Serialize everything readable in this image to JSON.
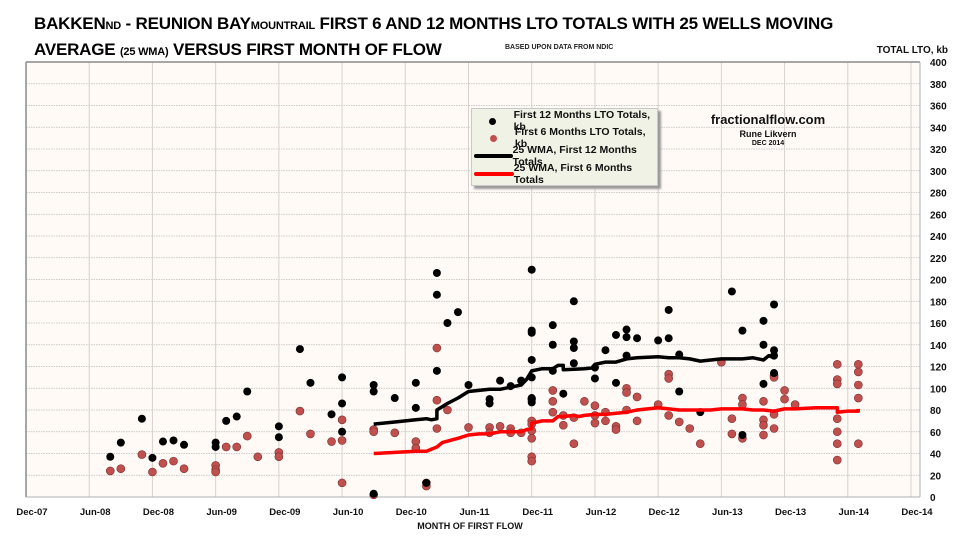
{
  "title": {
    "part1": "BAKKEN",
    "part1_sub": "ND",
    "part2": " - REUNION BAY",
    "part2_sub": "MOUNTRAIL",
    "part3": " FIRST 6 AND 12 MONTHS LTO TOTALS WITH 25 WELLS MOVING",
    "line2_a": "AVERAGE ",
    "line2_sub": "(25 WMA)",
    "line2_b": " VERSUS FIRST MONTH OF FLOW"
  },
  "subtitle": "BASED UPON DATA FROM NDIC",
  "credit": {
    "site": "fractionalflow.com",
    "author": "Rune Likvern",
    "date": "DEC 2014"
  },
  "colors": {
    "first12": "#000000",
    "first6": "#c0504d",
    "wma12": "#000000",
    "wma6": "#ff0000",
    "plot_bg": "#fffaf5",
    "grid": "#c8c8c8"
  },
  "chart_data": {
    "type": "scatter",
    "title": "BAKKEN ND - REUNION BAY MOUNTRAIL FIRST 6 AND 12 MONTHS LTO TOTALS WITH 25 WELLS MOVING AVERAGE (25 WMA) VERSUS FIRST MONTH OF FLOW",
    "xlabel": "MONTH OF FIRST FLOW",
    "ylabel": "TOTAL LTO, kb",
    "x_unit": "months since Dec-07",
    "xlim": [
      0,
      85
    ],
    "ylim": [
      0,
      400
    ],
    "x_ticks": [
      {
        "m": 0,
        "label": "Dec-07"
      },
      {
        "m": 6,
        "label": "Jun-08"
      },
      {
        "m": 12,
        "label": "Dec-08"
      },
      {
        "m": 18,
        "label": "Jun-09"
      },
      {
        "m": 24,
        "label": "Dec-09"
      },
      {
        "m": 30,
        "label": "Jun-10"
      },
      {
        "m": 36,
        "label": "Dec-10"
      },
      {
        "m": 42,
        "label": "Jun-11"
      },
      {
        "m": 48,
        "label": "Dec-11"
      },
      {
        "m": 54,
        "label": "Jun-12"
      },
      {
        "m": 60,
        "label": "Dec-12"
      },
      {
        "m": 66,
        "label": "Jun-13"
      },
      {
        "m": 72,
        "label": "Dec-13"
      },
      {
        "m": 78,
        "label": "Jun-14"
      },
      {
        "m": 84,
        "label": "Dec-14"
      }
    ],
    "y_ticks": [
      0,
      20,
      40,
      60,
      80,
      100,
      120,
      140,
      160,
      180,
      200,
      220,
      240,
      260,
      280,
      300,
      320,
      340,
      360,
      380,
      400
    ],
    "grid": true,
    "legend_position": "top-center",
    "legend": [
      {
        "label": "First 12 Months LTO Totals, kb",
        "kind": "dot",
        "series": "first12"
      },
      {
        "label": "First 6 Months LTO Totals, kb",
        "kind": "dot",
        "series": "first6"
      },
      {
        "label": "25 WMA, First 12 Months Totals",
        "kind": "line",
        "series": "wma12"
      },
      {
        "label": "25 WMA, First 6 Months Totals",
        "kind": "line",
        "series": "wma6"
      }
    ],
    "series": [
      {
        "name": "First 12 Months LTO Totals, kb",
        "key": "first12",
        "points": [
          [
            8,
            37
          ],
          [
            9,
            50
          ],
          [
            11,
            72
          ],
          [
            12,
            36
          ],
          [
            13,
            51
          ],
          [
            14,
            52
          ],
          [
            15,
            48
          ],
          [
            18,
            50
          ],
          [
            18,
            46
          ],
          [
            19,
            70
          ],
          [
            20,
            74
          ],
          [
            21,
            97
          ],
          [
            24,
            65
          ],
          [
            24,
            55
          ],
          [
            26,
            136
          ],
          [
            27,
            105
          ],
          [
            29,
            76
          ],
          [
            30,
            110
          ],
          [
            30,
            86
          ],
          [
            30,
            60
          ],
          [
            33,
            103
          ],
          [
            33,
            97
          ],
          [
            33,
            3
          ],
          [
            35,
            91
          ],
          [
            37,
            105
          ],
          [
            37,
            82
          ],
          [
            38,
            13
          ],
          [
            39,
            206
          ],
          [
            39,
            186
          ],
          [
            39,
            116
          ],
          [
            40,
            160
          ],
          [
            41,
            170
          ],
          [
            42,
            103
          ],
          [
            44,
            90
          ],
          [
            44,
            86
          ],
          [
            45,
            107
          ],
          [
            46,
            102
          ],
          [
            47,
            107
          ],
          [
            48,
            110
          ],
          [
            48,
            209
          ],
          [
            48,
            153
          ],
          [
            48,
            151
          ],
          [
            48,
            126
          ],
          [
            48,
            91
          ],
          [
            48,
            87
          ],
          [
            50,
            158
          ],
          [
            50,
            140
          ],
          [
            50,
            116
          ],
          [
            51,
            95
          ],
          [
            52,
            143
          ],
          [
            52,
            137
          ],
          [
            52,
            180
          ],
          [
            52,
            123
          ],
          [
            54,
            119
          ],
          [
            54,
            109
          ],
          [
            55,
            135
          ],
          [
            56,
            105
          ],
          [
            56,
            149
          ],
          [
            57,
            154
          ],
          [
            57,
            147
          ],
          [
            57,
            130
          ],
          [
            58,
            146
          ],
          [
            60,
            144
          ],
          [
            61,
            172
          ],
          [
            61,
            146
          ],
          [
            62,
            131
          ],
          [
            62,
            97
          ],
          [
            64,
            78
          ],
          [
            67,
            189
          ],
          [
            68,
            153
          ],
          [
            68,
            57
          ],
          [
            70,
            162
          ],
          [
            70,
            140
          ],
          [
            70,
            104
          ],
          [
            71,
            177
          ],
          [
            71,
            135
          ],
          [
            71,
            130
          ],
          [
            71,
            114
          ]
        ]
      },
      {
        "name": "First 6 Months LTO Totals, kb",
        "key": "first6",
        "points": [
          [
            8,
            24
          ],
          [
            9,
            26
          ],
          [
            11,
            39
          ],
          [
            12,
            23
          ],
          [
            13,
            31
          ],
          [
            14,
            33
          ],
          [
            15,
            26
          ],
          [
            18,
            29
          ],
          [
            18,
            25
          ],
          [
            18,
            23
          ],
          [
            19,
            46
          ],
          [
            20,
            46
          ],
          [
            21,
            56
          ],
          [
            22,
            37
          ],
          [
            24,
            41
          ],
          [
            24,
            37
          ],
          [
            26,
            79
          ],
          [
            27,
            58
          ],
          [
            29,
            51
          ],
          [
            30,
            71
          ],
          [
            30,
            52
          ],
          [
            30,
            13
          ],
          [
            33,
            62
          ],
          [
            33,
            60
          ],
          [
            33,
            2
          ],
          [
            35,
            59
          ],
          [
            37,
            51
          ],
          [
            37,
            45
          ],
          [
            38,
            13
          ],
          [
            38,
            10
          ],
          [
            39,
            137
          ],
          [
            39,
            89
          ],
          [
            39,
            63
          ],
          [
            40,
            80
          ],
          [
            42,
            64
          ],
          [
            44,
            64
          ],
          [
            44,
            59
          ],
          [
            45,
            65
          ],
          [
            46,
            63
          ],
          [
            46,
            59
          ],
          [
            47,
            59
          ],
          [
            48,
            90
          ],
          [
            48,
            70
          ],
          [
            48,
            67
          ],
          [
            48,
            61
          ],
          [
            48,
            54
          ],
          [
            48,
            37
          ],
          [
            48,
            33
          ],
          [
            50,
            98
          ],
          [
            50,
            88
          ],
          [
            50,
            78
          ],
          [
            51,
            75
          ],
          [
            51,
            66
          ],
          [
            52,
            73
          ],
          [
            52,
            49
          ],
          [
            53,
            88
          ],
          [
            54,
            84
          ],
          [
            54,
            75
          ],
          [
            54,
            68
          ],
          [
            55,
            78
          ],
          [
            55,
            70
          ],
          [
            56,
            65
          ],
          [
            56,
            62
          ],
          [
            57,
            100
          ],
          [
            57,
            96
          ],
          [
            57,
            80
          ],
          [
            58,
            92
          ],
          [
            58,
            70
          ],
          [
            60,
            85
          ],
          [
            61,
            113
          ],
          [
            61,
            109
          ],
          [
            61,
            75
          ],
          [
            62,
            69
          ],
          [
            63,
            63
          ],
          [
            64,
            49
          ],
          [
            66,
            124
          ],
          [
            67,
            72
          ],
          [
            67,
            58
          ],
          [
            68,
            91
          ],
          [
            68,
            85
          ],
          [
            68,
            54
          ],
          [
            70,
            88
          ],
          [
            70,
            71
          ],
          [
            70,
            66
          ],
          [
            70,
            57
          ],
          [
            71,
            112
          ],
          [
            71,
            110
          ],
          [
            71,
            76
          ],
          [
            71,
            63
          ],
          [
            72,
            98
          ],
          [
            72,
            90
          ],
          [
            73,
            85
          ],
          [
            77,
            122
          ],
          [
            77,
            108
          ],
          [
            77,
            104
          ],
          [
            77,
            72
          ],
          [
            77,
            60
          ],
          [
            77,
            49
          ],
          [
            77,
            34
          ],
          [
            79,
            122
          ],
          [
            79,
            115
          ],
          [
            79,
            103
          ],
          [
            79,
            91
          ],
          [
            79,
            49
          ]
        ]
      },
      {
        "name": "25 WMA, First 12 Months Totals",
        "key": "wma12",
        "points": [
          [
            33,
            67
          ],
          [
            35,
            69
          ],
          [
            37,
            71
          ],
          [
            38,
            72
          ],
          [
            38.5,
            71
          ],
          [
            39,
            72
          ],
          [
            39,
            80
          ],
          [
            40,
            86
          ],
          [
            41,
            91
          ],
          [
            42,
            97
          ],
          [
            43,
            98
          ],
          [
            44,
            99
          ],
          [
            45,
            99
          ],
          [
            46,
            101
          ],
          [
            47,
            103
          ],
          [
            47.5,
            108
          ],
          [
            48,
            116
          ],
          [
            49,
            118
          ],
          [
            50,
            118
          ],
          [
            50.5,
            121
          ],
          [
            51,
            121
          ],
          [
            51,
            117
          ],
          [
            53,
            118
          ],
          [
            54,
            119
          ],
          [
            54,
            122
          ],
          [
            55,
            124
          ],
          [
            56,
            124
          ],
          [
            57,
            127
          ],
          [
            58,
            128
          ],
          [
            60,
            129
          ],
          [
            61,
            128
          ],
          [
            62,
            128
          ],
          [
            63,
            127
          ],
          [
            64,
            125
          ],
          [
            65,
            126
          ],
          [
            66,
            127
          ],
          [
            67,
            127
          ],
          [
            68,
            127
          ],
          [
            69,
            128
          ],
          [
            70,
            126
          ],
          [
            70.5,
            130
          ],
          [
            71,
            128
          ]
        ]
      },
      {
        "name": "25 WMA, First 6 Months Totals",
        "key": "wma6",
        "points": [
          [
            33,
            40
          ],
          [
            35,
            41
          ],
          [
            37,
            42
          ],
          [
            38,
            42
          ],
          [
            38.5,
            44
          ],
          [
            39,
            46
          ],
          [
            39.5,
            50
          ],
          [
            41,
            54
          ],
          [
            42,
            57
          ],
          [
            43,
            58
          ],
          [
            44,
            58
          ],
          [
            45,
            60
          ],
          [
            46,
            60
          ],
          [
            47,
            60
          ],
          [
            47.5,
            62
          ],
          [
            48,
            63
          ],
          [
            48,
            68
          ],
          [
            49,
            70
          ],
          [
            50,
            70
          ],
          [
            50.5,
            74
          ],
          [
            51,
            74
          ],
          [
            52,
            75
          ],
          [
            52.5,
            74
          ],
          [
            53,
            75
          ],
          [
            54,
            76
          ],
          [
            55,
            76
          ],
          [
            56,
            77
          ],
          [
            57,
            78
          ],
          [
            58,
            80
          ],
          [
            59,
            81
          ],
          [
            60,
            82
          ],
          [
            61,
            81
          ],
          [
            62,
            80
          ],
          [
            63,
            80
          ],
          [
            64,
            80
          ],
          [
            65,
            80
          ],
          [
            66,
            81
          ],
          [
            67,
            81
          ],
          [
            68,
            81
          ],
          [
            69,
            80
          ],
          [
            70,
            80
          ],
          [
            71,
            79
          ],
          [
            72,
            81
          ],
          [
            73,
            81
          ],
          [
            75,
            82
          ],
          [
            77,
            82
          ],
          [
            77,
            78
          ],
          [
            78,
            79
          ],
          [
            79,
            79
          ],
          [
            79,
            81
          ]
        ]
      }
    ]
  }
}
